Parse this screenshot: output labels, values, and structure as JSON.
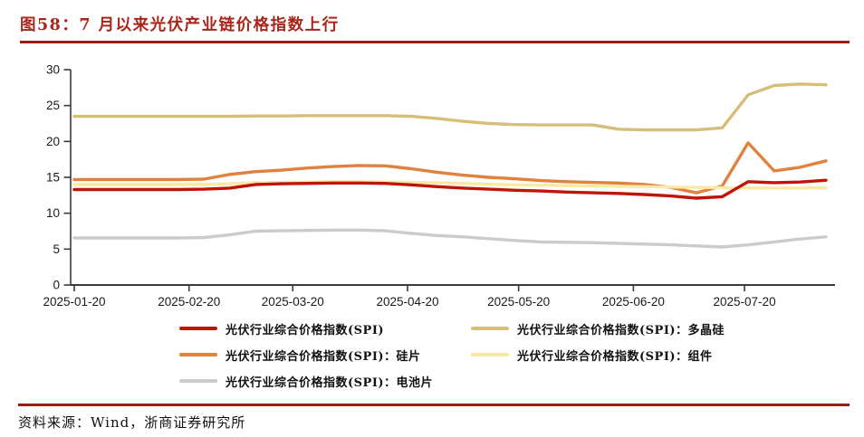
{
  "figure": {
    "title": "图58：7 月以来光伏产业链价格指数上行",
    "source": "资料来源：Wind，浙商证券研究所"
  },
  "colors": {
    "title_red": "#A8251A",
    "divider_red": "#9B1D12",
    "axis": "#3a3a3a"
  },
  "chart_data": {
    "type": "line",
    "title": "图58：7 月以来光伏产业链价格指数上行",
    "x": [
      "2025-01-20",
      "2025-01-27",
      "2025-02-03",
      "2025-02-10",
      "2025-02-17",
      "2025-02-24",
      "2025-03-03",
      "2025-03-10",
      "2025-03-17",
      "2025-03-24",
      "2025-03-31",
      "2025-04-07",
      "2025-04-14",
      "2025-04-21",
      "2025-04-28",
      "2025-05-05",
      "2025-05-12",
      "2025-05-19",
      "2025-05-26",
      "2025-06-02",
      "2025-06-09",
      "2025-06-16",
      "2025-06-23",
      "2025-06-30",
      "2025-07-07",
      "2025-07-14",
      "2025-07-21",
      "2025-07-28",
      "2025-08-04",
      "2025-08-11"
    ],
    "series": [
      {
        "key": "spi",
        "name": "光伏行业综合价格指数(SPI)",
        "color": "#BF1508",
        "values": [
          13.3,
          13.3,
          13.3,
          13.3,
          13.3,
          13.35,
          13.5,
          14.0,
          14.1,
          14.15,
          14.2,
          14.2,
          14.15,
          13.95,
          13.7,
          13.5,
          13.35,
          13.2,
          13.1,
          12.95,
          12.85,
          12.75,
          12.6,
          12.4,
          12.1,
          12.3,
          14.4,
          14.25,
          14.35,
          14.6
        ]
      },
      {
        "key": "polysilicon",
        "name": "光伏行业综合价格指数(SPI)：多晶硅",
        "color": "#D6BE79",
        "values": [
          23.5,
          23.5,
          23.5,
          23.5,
          23.5,
          23.5,
          23.5,
          23.55,
          23.55,
          23.6,
          23.6,
          23.6,
          23.6,
          23.5,
          23.2,
          22.8,
          22.5,
          22.35,
          22.3,
          22.3,
          22.3,
          21.7,
          21.6,
          21.6,
          21.6,
          21.9,
          26.5,
          27.8,
          28.0,
          27.9
        ]
      },
      {
        "key": "wafer",
        "name": "光伏行业综合价格指数(SPI)：硅片",
        "color": "#E2813D",
        "values": [
          14.7,
          14.7,
          14.7,
          14.7,
          14.7,
          14.75,
          15.4,
          15.8,
          16.0,
          16.3,
          16.5,
          16.65,
          16.6,
          16.2,
          15.7,
          15.3,
          15.0,
          14.8,
          14.55,
          14.4,
          14.3,
          14.2,
          14.0,
          13.6,
          12.85,
          13.8,
          19.8,
          15.9,
          16.4,
          17.3
        ]
      },
      {
        "key": "module",
        "name": "光伏行业综合价格指数(SPI)：组件",
        "color": "#FAE9A2",
        "values": [
          14.0,
          14.0,
          14.0,
          14.0,
          14.0,
          14.0,
          14.1,
          14.25,
          14.3,
          14.35,
          14.4,
          14.4,
          14.35,
          14.3,
          14.25,
          14.15,
          14.05,
          13.95,
          13.9,
          13.85,
          13.8,
          13.75,
          13.7,
          13.65,
          13.6,
          13.55,
          13.5,
          13.5,
          13.5,
          13.55
        ]
      },
      {
        "key": "cell",
        "name": "光伏行业综合价格指数(SPI)：电池片",
        "color": "#CBCBCB",
        "values": [
          6.55,
          6.55,
          6.55,
          6.55,
          6.55,
          6.6,
          7.0,
          7.5,
          7.55,
          7.6,
          7.65,
          7.65,
          7.55,
          7.2,
          6.9,
          6.7,
          6.45,
          6.2,
          6.0,
          5.95,
          5.9,
          5.8,
          5.7,
          5.6,
          5.45,
          5.3,
          5.6,
          6.0,
          6.4,
          6.7
        ]
      }
    ],
    "z_order": [
      "cell",
      "polysilicon",
      "wafer",
      "module",
      "spi"
    ],
    "ylim": [
      0,
      30
    ],
    "yticks": [
      0,
      5,
      10,
      15,
      20,
      25,
      30
    ],
    "xticks": [
      "2025-01-20",
      "2025-02-20",
      "2025-03-20",
      "2025-04-20",
      "2025-05-20",
      "2025-06-20",
      "2025-07-20"
    ],
    "grid": false,
    "legend_position": "bottom"
  }
}
